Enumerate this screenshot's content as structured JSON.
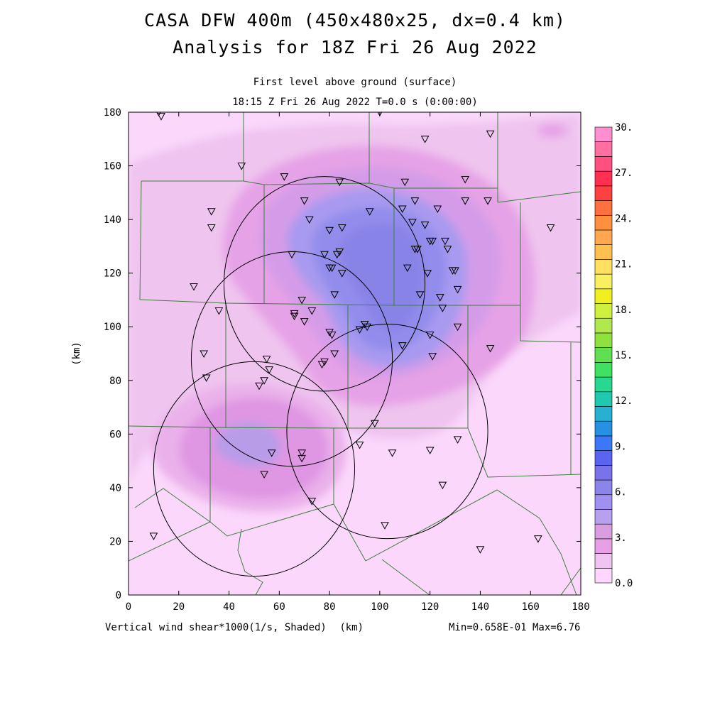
{
  "title": {
    "line1": "CASA DFW 400m (450x480x25, dx=0.4 km)",
    "line2": "Analysis for 18Z Fri 26 Aug 2022"
  },
  "subtitle": {
    "level": "First level above ground (surface)",
    "time": "18:15 Z Fri 26 Aug 2022   T=0.0 s (0:00:00)"
  },
  "axes": {
    "x_ticks": [
      "0",
      "20",
      "40",
      "60",
      "80",
      "100",
      "120",
      "140",
      "160",
      "180"
    ],
    "y_ticks": [
      "0",
      "20",
      "40",
      "60",
      "80",
      "100",
      "120",
      "140",
      "160",
      "180"
    ],
    "y_label": "(km)",
    "x_label": "(km)"
  },
  "colorbar": {
    "labels": [
      "0.0",
      "3.",
      "6.",
      "9.",
      "12.",
      "15.",
      "18.",
      "21.",
      "24.",
      "27.",
      "30."
    ],
    "colors": [
      "#ffd6ff",
      "#f0c4f0",
      "#e6a0e6",
      "#d89ee0",
      "#b8a0f0",
      "#a090f0",
      "#8c84e8",
      "#7a72e8",
      "#5a64f0",
      "#3c78f5",
      "#2890e0",
      "#28b0d0",
      "#20c8b0",
      "#28d890",
      "#40e060",
      "#60e050",
      "#90e040",
      "#b0e850",
      "#d0f040",
      "#f0f020",
      "#f8f060",
      "#ffe060",
      "#ffc050",
      "#ffa850",
      "#ff9040",
      "#ff7040",
      "#ff4040",
      "#ff3050",
      "#ff5080",
      "#ff70a0",
      "#ff90d0"
    ]
  },
  "footer": {
    "left": "Vertical wind shear*1000(1/s, Shaded)",
    "unit": "(km)",
    "right": "Min=0.658E-01 Max=6.76"
  },
  "stations": [
    [
      12,
      180
    ],
    [
      13,
      178.5
    ],
    [
      100,
      180
    ],
    [
      118,
      170
    ],
    [
      144,
      172
    ],
    [
      45,
      160
    ],
    [
      62,
      156
    ],
    [
      84,
      154
    ],
    [
      110,
      154
    ],
    [
      134,
      155
    ],
    [
      33,
      143
    ],
    [
      33,
      137
    ],
    [
      70,
      147
    ],
    [
      72,
      140
    ],
    [
      114,
      147
    ],
    [
      123,
      144
    ],
    [
      134,
      147
    ],
    [
      143,
      147
    ],
    [
      96,
      143
    ],
    [
      109,
      144
    ],
    [
      113,
      139
    ],
    [
      118,
      138
    ],
    [
      120,
      132
    ],
    [
      121,
      132
    ],
    [
      126,
      132
    ],
    [
      127,
      129
    ],
    [
      80,
      136
    ],
    [
      85,
      137
    ],
    [
      65,
      127
    ],
    [
      78,
      127
    ],
    [
      83,
      127
    ],
    [
      84,
      128
    ],
    [
      80,
      122
    ],
    [
      81,
      122
    ],
    [
      85,
      120
    ],
    [
      114,
      129
    ],
    [
      115,
      129
    ],
    [
      111,
      122
    ],
    [
      119,
      120
    ],
    [
      130,
      121
    ],
    [
      129,
      121
    ],
    [
      131,
      114
    ],
    [
      82,
      112
    ],
    [
      116,
      112
    ],
    [
      124,
      111
    ],
    [
      125,
      107
    ],
    [
      168,
      137
    ],
    [
      26,
      115
    ],
    [
      36,
      106
    ],
    [
      69,
      110
    ],
    [
      66,
      105
    ],
    [
      66,
      104
    ],
    [
      73,
      106
    ],
    [
      70,
      102
    ],
    [
      80,
      98
    ],
    [
      81,
      97
    ],
    [
      92,
      99
    ],
    [
      94,
      101
    ],
    [
      95,
      100
    ],
    [
      120,
      97
    ],
    [
      131,
      100
    ],
    [
      109,
      93
    ],
    [
      121,
      89
    ],
    [
      144,
      92
    ],
    [
      30,
      90
    ],
    [
      55,
      88
    ],
    [
      56,
      84
    ],
    [
      31,
      81
    ],
    [
      52,
      78
    ],
    [
      54,
      80
    ],
    [
      78,
      87
    ],
    [
      77,
      86
    ],
    [
      82,
      90
    ],
    [
      98,
      64
    ],
    [
      131,
      58
    ],
    [
      69,
      53
    ],
    [
      69,
      51
    ],
    [
      57,
      53
    ],
    [
      92,
      56
    ],
    [
      105,
      53
    ],
    [
      120,
      54
    ],
    [
      54,
      45
    ],
    [
      73,
      35
    ],
    [
      125,
      41
    ],
    [
      102,
      26
    ],
    [
      10,
      22
    ],
    [
      140,
      17
    ],
    [
      163,
      21
    ]
  ],
  "radar_circles": [
    [
      78,
      116,
      40
    ],
    [
      65,
      88,
      40
    ],
    [
      103,
      61,
      40
    ],
    [
      50,
      47,
      40
    ]
  ]
}
